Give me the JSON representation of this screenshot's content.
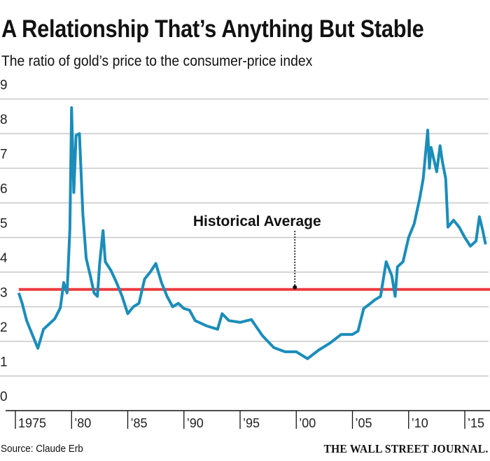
{
  "header": {
    "title": "A Relationship That’s Anything But Stable",
    "subtitle": "The ratio of gold’s price to the consumer-price index"
  },
  "footer": {
    "source": "Source: Claude Erb",
    "publisher": "THE WALL STREET JOURNAL."
  },
  "colors": {
    "series": "#1a8dba",
    "average": "#ec3b3f",
    "grid": "#c8c8c8"
  },
  "chart_data": {
    "type": "line",
    "title": "A Relationship That’s Anything But Stable",
    "subtitle": "The ratio of gold’s price to the consumer-price index",
    "xlabel": "",
    "ylabel": "",
    "ylim": [
      0,
      9
    ],
    "xlim": [
      1975,
      2016.9
    ],
    "grid": true,
    "yticks": [
      0,
      1,
      2,
      3,
      4,
      5,
      6,
      7,
      8,
      9
    ],
    "yticklabels": [
      "0",
      "1",
      "2",
      "3",
      "4",
      "5",
      "6",
      "7",
      "8",
      "9"
    ],
    "xticks": [
      1975,
      1980,
      1985,
      1990,
      1995,
      2000,
      2005,
      2010,
      2015
    ],
    "xticklabels": [
      "1975",
      "’80",
      "’85",
      "’90",
      "’95",
      "’00",
      "’05",
      "’10",
      "’15"
    ],
    "annotation": {
      "label": "Historical Average",
      "value": 3.5,
      "x": 2000
    },
    "series": [
      {
        "name": "Gold price / CPI",
        "x": [
          1975.3,
          1975.6,
          1976,
          1976.5,
          1977,
          1977.5,
          1978,
          1978.5,
          1979,
          1979.3,
          1979.6,
          1979.85,
          1980.0,
          1980.2,
          1980.4,
          1980.7,
          1981.0,
          1981.3,
          1981.7,
          1982.0,
          1982.3,
          1982.5,
          1982.8,
          1983.0,
          1983.5,
          1984,
          1984.5,
          1985,
          1985.5,
          1986,
          1986.5,
          1987,
          1987.5,
          1988,
          1988.5,
          1989,
          1989.5,
          1990,
          1990.5,
          1991,
          1992,
          1993,
          1993.4,
          1994,
          1995,
          1996,
          1997,
          1998,
          1999,
          2000,
          2001,
          2002,
          2003,
          2004,
          2005,
          2005.5,
          2006,
          2006.5,
          2007,
          2007.5,
          2008,
          2008.5,
          2008.8,
          2009,
          2009.5,
          2010,
          2010.5,
          2011,
          2011.3,
          2011.7,
          2011.85,
          2012,
          2012.5,
          2012.8,
          2013,
          2013.3,
          2013.5,
          2014,
          2014.5,
          2015,
          2015.5,
          2016,
          2016.3,
          2016.6,
          2016.85
        ],
        "values": [
          3.4,
          3.1,
          2.6,
          2.2,
          1.8,
          2.35,
          2.5,
          2.65,
          2.97,
          3.7,
          3.4,
          5.25,
          8.75,
          6.3,
          7.95,
          8.0,
          5.7,
          4.4,
          3.85,
          3.4,
          3.3,
          4.25,
          5.2,
          4.3,
          4.05,
          3.7,
          3.3,
          2.8,
          3.0,
          3.1,
          3.8,
          4.0,
          4.25,
          3.7,
          3.3,
          3.0,
          3.1,
          2.95,
          2.9,
          2.6,
          2.45,
          2.35,
          2.8,
          2.6,
          2.55,
          2.63,
          2.16,
          1.82,
          1.7,
          1.7,
          1.5,
          1.75,
          1.95,
          2.2,
          2.2,
          2.3,
          2.95,
          3.07,
          3.2,
          3.3,
          4.3,
          3.9,
          3.3,
          4.15,
          4.3,
          5.0,
          5.4,
          6.15,
          6.7,
          8.1,
          7.0,
          7.6,
          6.9,
          7.65,
          7.2,
          6.7,
          5.3,
          5.5,
          5.3,
          5.0,
          4.75,
          4.9,
          5.6,
          5.2,
          4.8
        ]
      }
    ]
  }
}
